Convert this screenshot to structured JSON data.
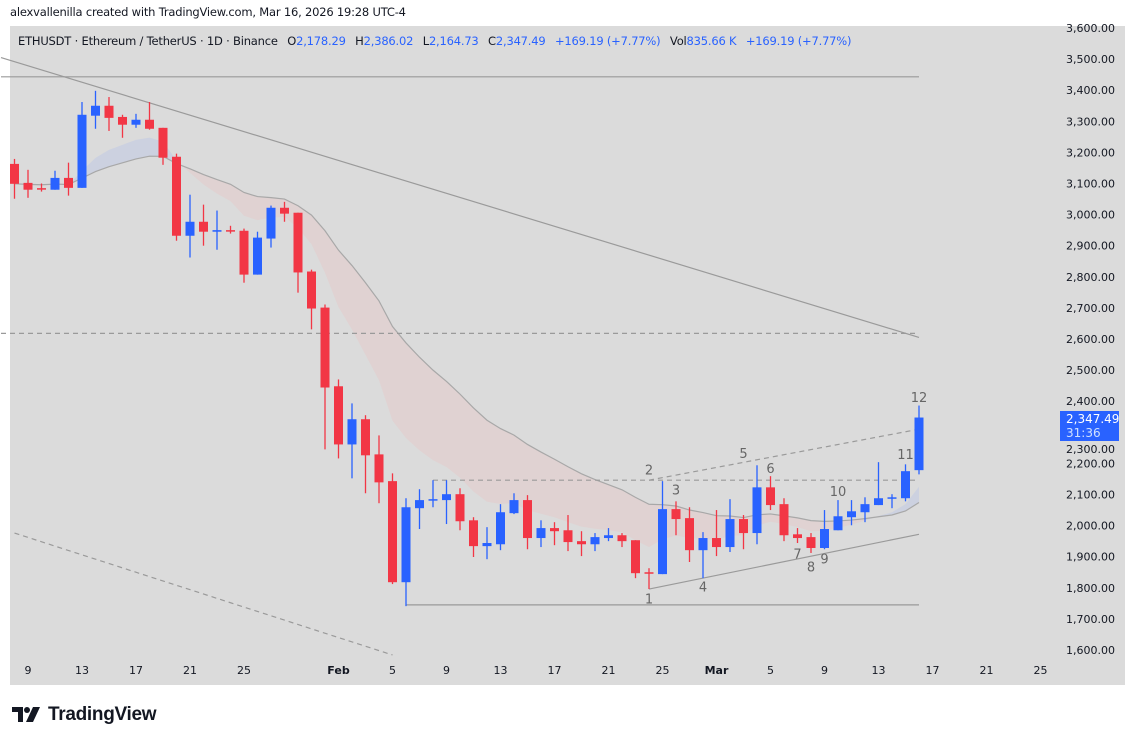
{
  "credit": "alexvallenilla created with TradingView.com, Mar 16, 2026 19:28 UTC-4",
  "legend": {
    "symbol": "ETHUSDT · Ethereum / TetherUS · 1D · Binance",
    "o_label": "O",
    "o": "2,178.29",
    "h_label": "H",
    "h": "2,386.02",
    "l_label": "L",
    "l": "2,164.73",
    "c_label": "C",
    "c": "2,347.49",
    "change": "+169.19 (+7.77%)",
    "vol_label": "Vol",
    "vol": "835.66 K",
    "vol_change": "+169.19 (+7.77%)"
  },
  "last_price": {
    "price": "2,347.49",
    "countdown": "31:36"
  },
  "logo": {
    "text": "TradingView"
  },
  "colors": {
    "up": "#2962ff",
    "down": "#f23645",
    "background": "#dbdbdb",
    "lines": "#9a9a9a",
    "ribbon_up": "#c9cfe0",
    "ribbon_down": "#e0d0d0"
  },
  "chart_data": {
    "type": "candlestick",
    "ylim": [
      1600,
      3600
    ],
    "price_ticks": [
      "3,600.00",
      "3,500.00",
      "3,400.00",
      "3,300.00",
      "3,200.00",
      "3,100.00",
      "3,000.00",
      "2,900.00",
      "2,800.00",
      "2,700.00",
      "2,600.00",
      "2,500.00",
      "2,400.00",
      "2,300.00",
      "2,200.00",
      "2,100.00",
      "2,000.00",
      "1,900.00",
      "1,800.00",
      "1,700.00",
      "1,600.00"
    ],
    "price_tick_values": [
      3600,
      3500,
      3400,
      3300,
      3200,
      3100,
      3000,
      2900,
      2800,
      2700,
      2600,
      2500,
      2400,
      2300,
      2200,
      2100,
      2000,
      1900,
      1800,
      1700,
      1600
    ],
    "x_ticks": [
      {
        "date": "2026-01-09",
        "label": "9"
      },
      {
        "date": "2026-01-13",
        "label": "13"
      },
      {
        "date": "2026-01-17",
        "label": "17"
      },
      {
        "date": "2026-01-21",
        "label": "21"
      },
      {
        "date": "2026-01-25",
        "label": "25"
      },
      {
        "date": "2026-02-01",
        "label": "Feb"
      },
      {
        "date": "2026-02-05",
        "label": "5"
      },
      {
        "date": "2026-02-09",
        "label": "9"
      },
      {
        "date": "2026-02-13",
        "label": "13"
      },
      {
        "date": "2026-02-17",
        "label": "17"
      },
      {
        "date": "2026-02-21",
        "label": "21"
      },
      {
        "date": "2026-02-25",
        "label": "25"
      },
      {
        "date": "2026-03-01",
        "label": "Mar"
      },
      {
        "date": "2026-03-05",
        "label": "5"
      },
      {
        "date": "2026-03-09",
        "label": "9"
      },
      {
        "date": "2026-03-13",
        "label": "13"
      },
      {
        "date": "2026-03-17",
        "label": "17"
      },
      {
        "date": "2026-03-21",
        "label": "21"
      },
      {
        "date": "2026-03-25",
        "label": "25"
      }
    ],
    "candles_fields": [
      "date",
      "open",
      "high",
      "low",
      "close"
    ],
    "candles": [
      [
        "2026-01-08",
        3163,
        3179,
        3051,
        3099
      ],
      [
        "2026-01-09",
        3102,
        3144,
        3054,
        3080
      ],
      [
        "2026-01-10",
        3085,
        3100,
        3074,
        3083
      ],
      [
        "2026-01-11",
        3080,
        3141,
        3080,
        3118
      ],
      [
        "2026-01-12",
        3118,
        3167,
        3061,
        3086
      ],
      [
        "2026-01-13",
        3086,
        3362,
        3086,
        3321
      ],
      [
        "2026-01-14",
        3318,
        3398,
        3276,
        3350
      ],
      [
        "2026-01-15",
        3350,
        3378,
        3269,
        3311
      ],
      [
        "2026-01-16",
        3314,
        3321,
        3247,
        3289
      ],
      [
        "2026-01-17",
        3289,
        3324,
        3279,
        3305
      ],
      [
        "2026-01-18",
        3305,
        3362,
        3273,
        3276
      ],
      [
        "2026-01-19",
        3279,
        3279,
        3160,
        3183
      ],
      [
        "2026-01-20",
        3186,
        3196,
        2916,
        2932
      ],
      [
        "2026-01-21",
        2932,
        3064,
        2862,
        2977
      ],
      [
        "2026-01-22",
        2977,
        3032,
        2900,
        2945
      ],
      [
        "2026-01-23",
        2945,
        3013,
        2887,
        2950
      ],
      [
        "2026-01-24",
        2950,
        2964,
        2939,
        2948
      ],
      [
        "2026-01-25",
        2948,
        2955,
        2781,
        2807
      ],
      [
        "2026-01-26",
        2807,
        2945,
        2807,
        2926
      ],
      [
        "2026-01-27",
        2923,
        3029,
        2894,
        3022
      ],
      [
        "2026-01-28",
        3022,
        3041,
        2977,
        3003
      ],
      [
        "2026-01-29",
        3006,
        3006,
        2749,
        2814
      ],
      [
        "2026-01-30",
        2817,
        2823,
        2631,
        2698
      ],
      [
        "2026-01-31",
        2701,
        2711,
        2245,
        2444
      ],
      [
        "2026-02-01",
        2448,
        2470,
        2216,
        2261
      ],
      [
        "2026-02-02",
        2261,
        2393,
        2152,
        2342
      ],
      [
        "2026-02-03",
        2342,
        2355,
        2104,
        2226
      ],
      [
        "2026-02-04",
        2229,
        2290,
        2072,
        2139
      ],
      [
        "2026-02-05",
        2143,
        2168,
        1812,
        1818
      ],
      [
        "2026-02-06",
        1818,
        2088,
        1741,
        2059
      ],
      [
        "2026-02-07",
        2056,
        2117,
        1989,
        2082
      ],
      [
        "2026-02-08",
        2082,
        2146,
        2059,
        2085
      ],
      [
        "2026-02-09",
        2082,
        2146,
        2005,
        2101
      ],
      [
        "2026-02-10",
        2101,
        2120,
        1985,
        2014
      ],
      [
        "2026-02-11",
        2017,
        2027,
        1899,
        1934
      ],
      [
        "2026-02-12",
        1934,
        1995,
        1892,
        1944
      ],
      [
        "2026-02-13",
        1940,
        2069,
        1921,
        2043
      ],
      [
        "2026-02-14",
        2040,
        2104,
        2037,
        2082
      ],
      [
        "2026-02-15",
        2082,
        2098,
        1924,
        1960
      ],
      [
        "2026-02-16",
        1960,
        2017,
        1931,
        1992
      ],
      [
        "2026-02-17",
        1992,
        2011,
        1937,
        1982
      ],
      [
        "2026-02-18",
        1985,
        2034,
        1918,
        1947
      ],
      [
        "2026-02-19",
        1950,
        1982,
        1902,
        1940
      ],
      [
        "2026-02-20",
        1940,
        1976,
        1918,
        1963
      ],
      [
        "2026-02-21",
        1960,
        1992,
        1950,
        1969
      ],
      [
        "2026-02-22",
        1969,
        1976,
        1931,
        1950
      ],
      [
        "2026-02-23",
        1953,
        1953,
        1831,
        1847
      ],
      [
        "2026-02-24",
        1850,
        1863,
        1796,
        1847
      ],
      [
        "2026-02-25",
        1844,
        2143,
        1844,
        2053
      ],
      [
        "2026-02-26",
        2053,
        2078,
        1969,
        2021
      ],
      [
        "2026-02-27",
        2024,
        2059,
        1883,
        1921
      ],
      [
        "2026-02-28",
        1921,
        1979,
        1831,
        1960
      ],
      [
        "2026-03-01",
        1960,
        2050,
        1902,
        1931
      ],
      [
        "2026-03-02",
        1931,
        2085,
        1915,
        2021
      ],
      [
        "2026-03-03",
        2021,
        2034,
        1924,
        1976
      ],
      [
        "2026-03-04",
        1976,
        2194,
        1940,
        2123
      ],
      [
        "2026-03-05",
        2123,
        2159,
        2050,
        2066
      ],
      [
        "2026-03-06",
        2069,
        2088,
        1950,
        1969
      ],
      [
        "2026-03-07",
        1972,
        1992,
        1944,
        1960
      ],
      [
        "2026-03-08",
        1963,
        1976,
        1912,
        1928
      ],
      [
        "2026-03-09",
        1928,
        2050,
        1924,
        1989
      ],
      [
        "2026-03-10",
        1985,
        2082,
        1985,
        2030
      ],
      [
        "2026-03-11",
        2027,
        2082,
        2001,
        2046
      ],
      [
        "2026-03-12",
        2043,
        2091,
        2011,
        2069
      ],
      [
        "2026-03-13",
        2066,
        2204,
        2066,
        2088
      ],
      [
        "2026-03-14",
        2088,
        2101,
        2056,
        2091
      ],
      [
        "2026-03-15",
        2088,
        2197,
        2078,
        2175
      ],
      [
        "2026-03-16",
        2178.29,
        2386.02,
        2164.73,
        2347.49
      ]
    ],
    "drawings": [
      {
        "name": "descending-trendline",
        "style": "solid",
        "from": [
          "2026-01-07",
          3505
        ],
        "to": [
          "2026-03-16",
          2605
        ]
      },
      {
        "name": "resistance-level",
        "style": "solid",
        "from": [
          "2026-01-07",
          3443
        ],
        "to": [
          "2026-03-16",
          3443
        ]
      },
      {
        "name": "dashed-level",
        "style": "dashed",
        "from": [
          "2026-01-07",
          2618
        ],
        "to": [
          "2026-03-16",
          2618
        ]
      },
      {
        "name": "lower-dashed-trendline",
        "style": "dashed",
        "from": [
          "2026-01-08",
          1976
        ],
        "to": [
          "2026-02-05",
          1584
        ]
      },
      {
        "name": "range-high-level",
        "style": "dashed",
        "from": [
          "2026-02-08",
          2146
        ],
        "to": [
          "2026-03-16",
          2146
        ]
      },
      {
        "name": "range-low-level",
        "style": "solid",
        "from": [
          "2026-02-06",
          1745
        ],
        "to": [
          "2026-03-16",
          1745
        ]
      },
      {
        "name": "rising-support-trendline",
        "style": "solid",
        "from": [
          "2026-02-24",
          1796
        ],
        "to": [
          "2026-03-16",
          1972
        ]
      },
      {
        "name": "rising-dashed-trendline",
        "style": "dashed",
        "from": [
          "2026-02-24",
          2146
        ],
        "to": [
          "2026-03-16",
          2310
        ]
      }
    ],
    "wave_labels": [
      {
        "text": "1",
        "date": "2026-02-24",
        "price": 1761
      },
      {
        "text": "2",
        "date": "2026-02-24",
        "price": 2175
      },
      {
        "text": "3",
        "date": "2026-02-26",
        "price": 2111
      },
      {
        "text": "4",
        "date": "2026-02-28",
        "price": 1799
      },
      {
        "text": "5",
        "date": "2026-03-03",
        "price": 2229
      },
      {
        "text": "6",
        "date": "2026-03-05",
        "price": 2181
      },
      {
        "text": "7",
        "date": "2026-03-07",
        "price": 1905
      },
      {
        "text": "8",
        "date": "2026-03-08",
        "price": 1863
      },
      {
        "text": "9",
        "date": "2026-03-09",
        "price": 1889
      },
      {
        "text": "10",
        "date": "2026-03-10",
        "price": 2107
      },
      {
        "text": "11",
        "date": "2026-03-15",
        "price": 2226
      },
      {
        "text": "12",
        "date": "2026-03-16",
        "price": 2409
      }
    ]
  }
}
